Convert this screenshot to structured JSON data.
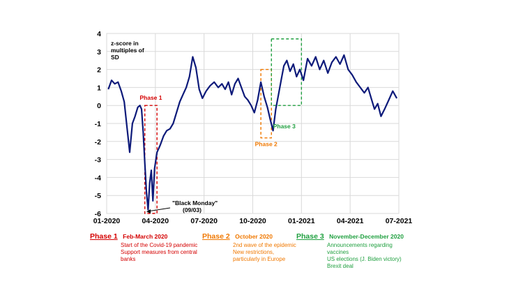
{
  "chart_data": {
    "type": "line",
    "ylabel": "z-score in multiples of SD",
    "ylim": [
      -6,
      4
    ],
    "yticks": [
      "4",
      "3",
      "2",
      "1",
      "0",
      "-1",
      "-2",
      "-3",
      "-4",
      "-5",
      "-6"
    ],
    "xticks": [
      "01-2020",
      "04-2020",
      "07-2020",
      "10-2020",
      "01-2021",
      "04-2021",
      "07-2021"
    ],
    "grid": true,
    "series": [
      {
        "color": "#0d1a7a",
        "points": [
          [
            "01-2020",
            0.9
          ],
          [
            "01-2020",
            1.4
          ],
          [
            "01-2020",
            1.2
          ],
          [
            "01-2020",
            1.3
          ],
          [
            "01-2020",
            0.8
          ],
          [
            "02-2020",
            0.2
          ],
          [
            "02-2020",
            -1.2
          ],
          [
            "02-2020",
            -2.6
          ],
          [
            "02-2020",
            -1.0
          ],
          [
            "02-2020",
            -0.6
          ],
          [
            "02-2020",
            -0.1
          ],
          [
            "03-2020",
            0.0
          ],
          [
            "03-2020",
            -0.2
          ],
          [
            "03-2020",
            -1.5
          ],
          [
            "03-2020",
            -3.2
          ],
          [
            "03-2020",
            -4.8
          ],
          [
            "03-2020",
            -5.8
          ],
          [
            "03-2020",
            -4.3
          ],
          [
            "03-2020",
            -3.6
          ],
          [
            "03-2020",
            -5.3
          ],
          [
            "03-2020",
            -3.5
          ],
          [
            "04-2020",
            -2.6
          ],
          [
            "04-2020",
            -2.2
          ],
          [
            "04-2020",
            -1.7
          ],
          [
            "04-2020",
            -1.4
          ],
          [
            "04-2020",
            -1.3
          ],
          [
            "05-2020",
            -1.0
          ],
          [
            "05-2020",
            -0.4
          ],
          [
            "05-2020",
            0.2
          ],
          [
            "05-2020",
            0.6
          ],
          [
            "05-2020",
            1.0
          ],
          [
            "06-2020",
            1.6
          ],
          [
            "06-2020",
            2.7
          ],
          [
            "06-2020",
            2.1
          ],
          [
            "06-2020",
            0.9
          ],
          [
            "06-2020",
            0.4
          ],
          [
            "07-2020",
            0.8
          ],
          [
            "07-2020",
            1.1
          ],
          [
            "07-2020",
            1.3
          ],
          [
            "07-2020",
            1.0
          ],
          [
            "08-2020",
            1.2
          ],
          [
            "08-2020",
            0.9
          ],
          [
            "08-2020",
            1.3
          ],
          [
            "08-2020",
            0.6
          ],
          [
            "08-2020",
            1.2
          ],
          [
            "09-2020",
            1.5
          ],
          [
            "09-2020",
            1.0
          ],
          [
            "09-2020",
            0.5
          ],
          [
            "09-2020",
            0.3
          ],
          [
            "09-2020",
            0.0
          ],
          [
            "10-2020",
            -0.4
          ],
          [
            "10-2020",
            0.3
          ],
          [
            "10-2020",
            1.3
          ],
          [
            "10-2020",
            0.5
          ],
          [
            "10-2020",
            -0.1
          ],
          [
            "11-2020",
            -0.8
          ],
          [
            "11-2020",
            -1.4
          ],
          [
            "11-2020",
            -0.2
          ],
          [
            "11-2020",
            0.6
          ],
          [
            "11-2020",
            1.4
          ],
          [
            "11-2020",
            2.2
          ],
          [
            "12-2020",
            2.5
          ],
          [
            "12-2020",
            1.9
          ],
          [
            "12-2020",
            2.3
          ],
          [
            "12-2020",
            1.6
          ],
          [
            "12-2020",
            2.0
          ],
          [
            "01-2021",
            1.4
          ],
          [
            "01-2021",
            2.6
          ],
          [
            "01-2021",
            2.2
          ],
          [
            "01-2021",
            2.7
          ],
          [
            "02-2021",
            2.0
          ],
          [
            "02-2021",
            2.5
          ],
          [
            "02-2021",
            1.8
          ],
          [
            "02-2021",
            2.4
          ],
          [
            "03-2021",
            2.7
          ],
          [
            "03-2021",
            2.3
          ],
          [
            "03-2021",
            2.8
          ],
          [
            "03-2021",
            2.0
          ],
          [
            "04-2021",
            1.7
          ],
          [
            "04-2021",
            1.3
          ],
          [
            "04-2021",
            1.0
          ],
          [
            "04-2021",
            0.7
          ],
          [
            "05-2021",
            1.0
          ],
          [
            "05-2021",
            0.4
          ],
          [
            "05-2021",
            -0.2
          ],
          [
            "05-2021",
            0.1
          ],
          [
            "05-2021",
            -0.6
          ],
          [
            "06-2021",
            -0.2
          ],
          [
            "06-2021",
            0.3
          ],
          [
            "06-2021",
            0.8
          ],
          [
            "06-2021",
            0.4
          ]
        ]
      }
    ],
    "annotations": [
      {
        "label": "Phase 1",
        "color": "#d40000",
        "from": "03-2020",
        "to": "04-2020",
        "ymin": -6,
        "ymax": 0
      },
      {
        "label": "Phase 2",
        "color": "#f07800",
        "from": "10-2020",
        "to": "11-2020",
        "ymin": -1.8,
        "ymax": 2
      },
      {
        "label": "Phase 3",
        "color": "#20a040",
        "from": "11-2020",
        "to": "12-2020",
        "ymin": 0,
        "ymax": 3.7
      }
    ],
    "callout": {
      "text": "\"Black Monday\"",
      "date": "(09/03)"
    }
  },
  "legend": [
    {
      "title": "Phase 1",
      "period": "Feb-March 2020",
      "color": "#d40000",
      "lines": [
        "Start of the Covid-19 pandemic",
        "Support measures from central",
        "banks"
      ]
    },
    {
      "title": "Phase 2",
      "period": "October 2020",
      "color": "#f07800",
      "lines": [
        "2nd wave of the epidemic",
        "New restrictions,",
        "particularly  in Europe"
      ]
    },
    {
      "title": "Phase 3",
      "period": "November-December 2020",
      "color": "#20a040",
      "lines": [
        "Announcements  regarding",
        "vaccines",
        "US elections (J. Biden victory)",
        "Brexit deal"
      ]
    }
  ]
}
